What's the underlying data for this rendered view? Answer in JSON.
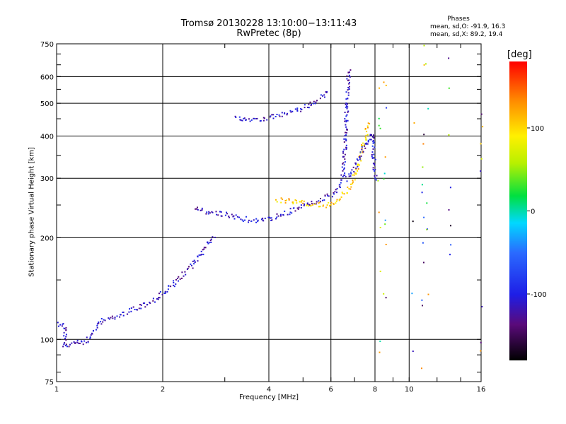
{
  "title_line1": "Tromsø 20130228 13:10:00−13:11:43",
  "title_line2": "RwPretec (8p)",
  "phase_title": "Phases",
  "phase_line1": "mean, sd,O: -91.9, 16.3",
  "phase_line2": "mean, sd,X:  89.2, 19.4",
  "colorbar": {
    "label": "[deg]",
    "ticks": [
      100,
      0,
      -100
    ],
    "range": [
      -180,
      180
    ]
  },
  "chart_data": {
    "type": "scatter",
    "xlabel": "Frequency [MHz]",
    "ylabel": "Stationary phase Virtual Height [km]",
    "x_scale": "log",
    "y_scale": "log",
    "xlim": [
      1,
      16
    ],
    "ylim": [
      75,
      750
    ],
    "x_ticks": [
      1,
      2,
      4,
      6,
      8,
      10,
      16
    ],
    "y_ticks": [
      75,
      100,
      200,
      300,
      400,
      500,
      600,
      750
    ],
    "grid": true,
    "traces": [
      {
        "name": "",
        "phase": -115,
        "points": [
          [
            1.0,
            112
          ],
          [
            1.05,
            110
          ],
          [
            1.05,
            95
          ],
          [
            1.15,
            100
          ],
          [
            1.2,
            98
          ],
          [
            1.35,
            115
          ],
          [
            1.45,
            116
          ],
          [
            1.5,
            118
          ],
          [
            1.6,
            122
          ],
          [
            1.7,
            125
          ],
          [
            1.8,
            128
          ],
          [
            1.9,
            132
          ],
          [
            2.0,
            138
          ],
          [
            2.1,
            144
          ],
          [
            2.2,
            150
          ],
          [
            2.3,
            158
          ],
          [
            2.4,
            165
          ],
          [
            2.5,
            175
          ],
          [
            2.6,
            185
          ],
          [
            2.7,
            196
          ],
          [
            2.8,
            205
          ]
        ]
      },
      {
        "name": "",
        "phase": -112,
        "points": [
          [
            2.45,
            245
          ],
          [
            2.6,
            240
          ],
          [
            2.8,
            238
          ],
          [
            3.0,
            235
          ],
          [
            3.2,
            232
          ],
          [
            3.4,
            228
          ],
          [
            3.6,
            226
          ],
          [
            3.8,
            226
          ],
          [
            4.0,
            228
          ],
          [
            4.2,
            232
          ],
          [
            4.4,
            236
          ],
          [
            4.6,
            240
          ],
          [
            4.8,
            245
          ],
          [
            5.0,
            250
          ],
          [
            5.3,
            255
          ],
          [
            5.6,
            260
          ],
          [
            5.9,
            266
          ],
          [
            6.2,
            275
          ],
          [
            6.4,
            290
          ],
          [
            6.5,
            320
          ],
          [
            6.55,
            380
          ],
          [
            6.6,
            450
          ],
          [
            6.65,
            520
          ],
          [
            6.7,
            600
          ],
          [
            6.75,
            640
          ]
        ]
      },
      {
        "name": "",
        "phase": -110,
        "points": [
          [
            3.2,
            455
          ],
          [
            3.5,
            450
          ],
          [
            3.8,
            452
          ],
          [
            4.1,
            458
          ],
          [
            4.4,
            465
          ],
          [
            4.7,
            475
          ],
          [
            5.0,
            488
          ],
          [
            5.3,
            500
          ],
          [
            5.6,
            520
          ],
          [
            5.9,
            545
          ]
        ]
      },
      {
        "name": "",
        "phase": 105,
        "points": [
          [
            4.2,
            260
          ],
          [
            4.6,
            258
          ],
          [
            5.0,
            255
          ],
          [
            5.4,
            252
          ],
          [
            5.8,
            250
          ],
          [
            6.2,
            258
          ],
          [
            6.6,
            275
          ],
          [
            6.9,
            295
          ],
          [
            7.1,
            320
          ],
          [
            7.3,
            360
          ],
          [
            7.5,
            400
          ],
          [
            7.6,
            440
          ]
        ]
      },
      {
        "name": "",
        "phase": -105,
        "points": [
          [
            6.6,
            300
          ],
          [
            6.9,
            320
          ],
          [
            7.2,
            345
          ],
          [
            7.5,
            380
          ],
          [
            7.8,
            410
          ],
          [
            8.0,
            300
          ]
        ]
      }
    ]
  }
}
